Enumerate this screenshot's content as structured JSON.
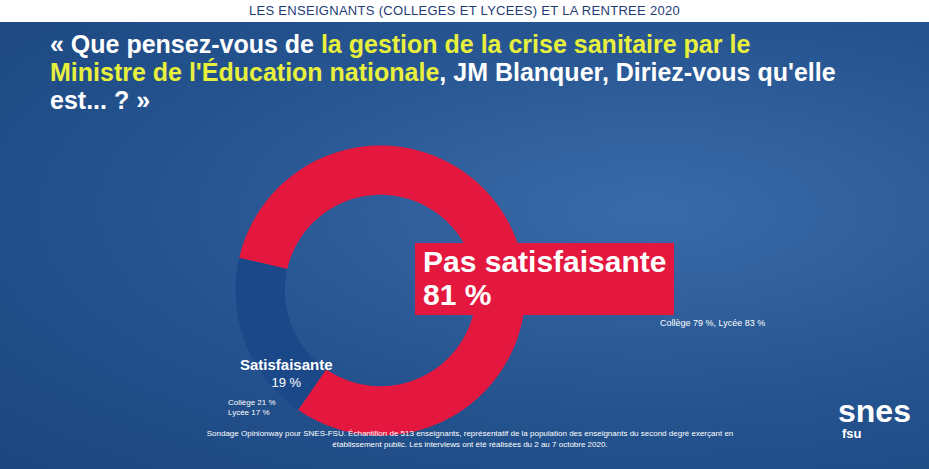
{
  "chart_data": {
    "type": "pie",
    "header": "LES ENSEIGNANTS (COLLEGES ET LYCEES) ET LA RENTREE 2020",
    "title": "« Que pensez-vous de la gestion de la crise sanitaire par le Ministre de l'Éducation nationale, JM Blanquer, Diriez-vous qu'elle est... ? »",
    "title_highlight": "la gestion de la crise sanitaire par le Ministre de l'Éducation nationale",
    "categories": [
      "Pas satisfaisante",
      "Satisfaisante"
    ],
    "values": [
      81,
      19
    ],
    "value_labels": [
      "81 %",
      "19 %"
    ],
    "colors": [
      "#e4173e",
      "#1b4889"
    ],
    "annotations": [
      "Collège 79 %, Lycée 83 %",
      "Collège 21 %\nLycée 17 %"
    ],
    "source": "Sondage Opinionway pour SNES-FSU. Échantillon de 513 enseignants, représentatif de la population des enseignants du second degré exerçant en établissement public. Les interviews ont été réalisées du 2 au 7 octobre 2020.",
    "logo": [
      "snes",
      "fsu"
    ],
    "data_labels": true,
    "tick_labels": false
  }
}
